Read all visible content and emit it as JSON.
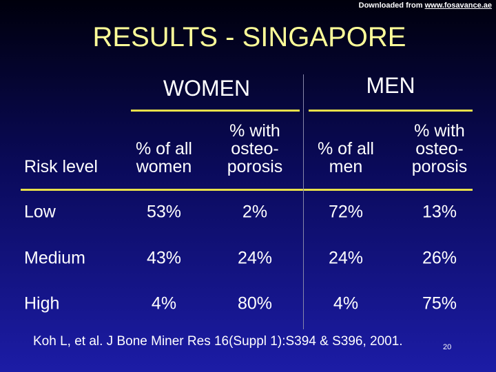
{
  "header": {
    "download_prefix": "Downloaded from",
    "download_link": "www.fosavance.ae",
    "title": "RESULTS - SINGAPORE"
  },
  "table": {
    "groups": [
      "WOMEN",
      "MEN"
    ],
    "columns": [
      [
        "Risk level"
      ],
      [
        "% of all",
        "women"
      ],
      [
        "% with",
        "osteo-",
        "porosis"
      ],
      [
        "% of all",
        "men"
      ],
      [
        "% with",
        "osteo-",
        "porosis"
      ]
    ],
    "rows": [
      [
        "Low",
        "53%",
        "2%",
        "72%",
        "13%"
      ],
      [
        "Medium",
        "43%",
        "24%",
        "24%",
        "26%"
      ],
      [
        "High",
        "4%",
        "80%",
        "4%",
        "75%"
      ]
    ]
  },
  "footer": {
    "citation": "Koh L, et al. J Bone Miner Res 16(Suppl 1):S394 & S396, 2001.",
    "page_number": "20"
  }
}
